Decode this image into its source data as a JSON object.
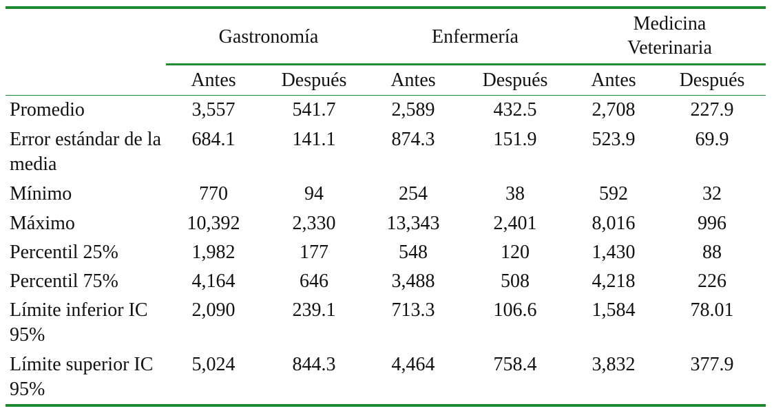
{
  "table": {
    "groups": [
      {
        "label": "Gastronomía"
      },
      {
        "label": "Medicina Veterinaria",
        "line1": "Medicina",
        "line2": "Veterinaria"
      },
      {
        "label": "Enfermería"
      }
    ],
    "group_order": [
      "Gastronomía",
      "Enfermería",
      "Medicina Veterinaria"
    ],
    "subheaders": [
      "Antes",
      "Después",
      "Antes",
      "Después",
      "Antes",
      "Después"
    ],
    "rows": [
      {
        "label": "Promedio",
        "values": [
          "3,557",
          "541.7",
          "2,589",
          "432.5",
          "2,708",
          "227.9"
        ]
      },
      {
        "label": "Error estándar de la media",
        "values": [
          "684.1",
          "141.1",
          "874.3",
          "151.9",
          "523.9",
          "69.9"
        ]
      },
      {
        "label": "Mínimo",
        "values": [
          "770",
          "94",
          "254",
          "38",
          "592",
          "32"
        ]
      },
      {
        "label": "Máximo",
        "values": [
          "10,392",
          "2,330",
          "13,343",
          "2,401",
          "8,016",
          "996"
        ]
      },
      {
        "label": "Percentil 25%",
        "values": [
          "1,982",
          "177",
          "548",
          "120",
          "1,430",
          "88"
        ]
      },
      {
        "label": "Percentil 75%",
        "values": [
          "4,164",
          "646",
          "3,488",
          "508",
          "4,218",
          "226"
        ]
      },
      {
        "label": "Límite inferior IC 95%",
        "values": [
          "2,090",
          "239.1",
          "713.3",
          "106.6",
          "1,584",
          "78.01"
        ]
      },
      {
        "label": "Límite superior IC 95%",
        "values": [
          "5,024",
          "844.3",
          "4,464",
          "758.4",
          "3,832",
          "377.9"
        ]
      }
    ]
  },
  "colors": {
    "rule": "#1f8a2f",
    "text": "#111111",
    "background": "#ffffff"
  }
}
